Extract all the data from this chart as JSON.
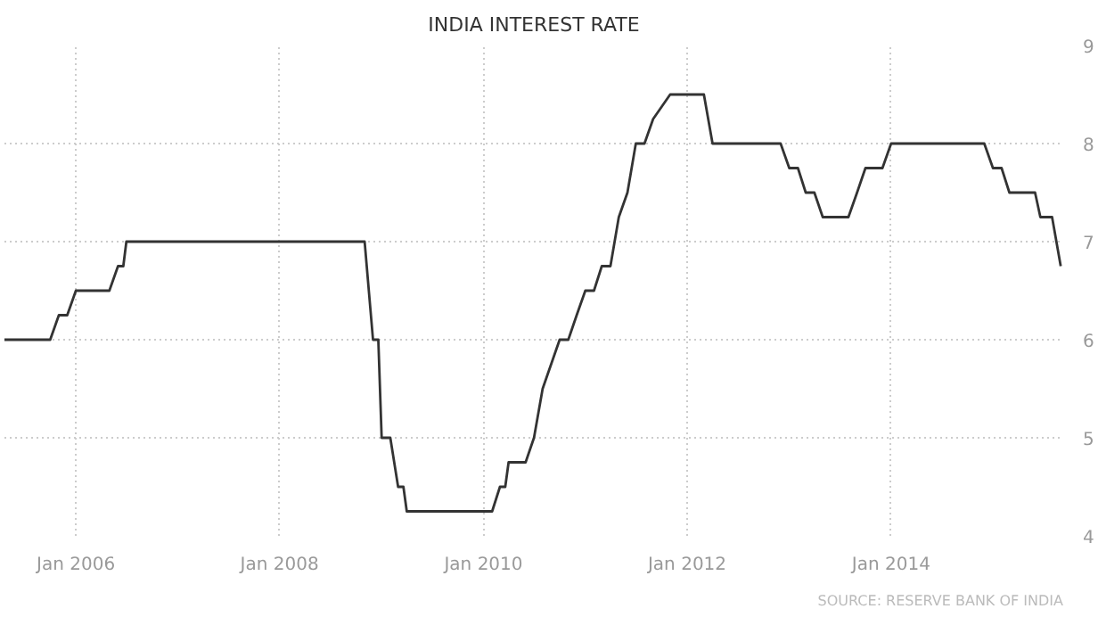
{
  "chart_data": {
    "type": "line",
    "title": "INDIA INTEREST RATE",
    "annotations": [
      "SOURCE: RESERVE BANK OF INDIA"
    ],
    "series": [
      {
        "color": "#333333",
        "x": [
          "2005-04-20",
          "2005-10",
          "2005-11",
          "2005-12",
          "2006-01",
          "2006-05",
          "2006-06",
          "2006-06-20",
          "2006-07",
          "2008-11",
          "2008-12",
          "2008-12-20",
          "2009-01",
          "2009-02",
          "2009-03",
          "2009-03-20",
          "2009-04",
          "2010-02",
          "2010-03",
          "2010-03-20",
          "2010-04",
          "2010-06",
          "2010-07",
          "2010-08",
          "2010-10",
          "2010-11",
          "2010-12",
          "2011-01",
          "2011-02",
          "2011-03",
          "2011-04",
          "2011-05",
          "2011-06",
          "2011-07",
          "2011-08",
          "2011-09",
          "2011-11",
          "2012-03",
          "2012-04",
          "2012-12",
          "2013-01",
          "2013-02",
          "2013-03",
          "2013-04",
          "2013-05",
          "2013-08",
          "2013-09",
          "2013-10",
          "2013-12",
          "2014-01",
          "2014-12",
          "2015-01",
          "2015-02",
          "2015-03",
          "2015-06",
          "2015-06-20",
          "2015-08",
          "2015-09"
        ],
        "values": [
          6.0,
          6.0,
          6.25,
          6.25,
          6.5,
          6.5,
          6.75,
          6.75,
          7.0,
          7.0,
          6.0,
          6.0,
          5.0,
          5.0,
          4.5,
          4.5,
          4.25,
          4.25,
          4.5,
          4.5,
          4.75,
          4.75,
          5.0,
          5.5,
          6.0,
          6.0,
          6.25,
          6.5,
          6.5,
          6.75,
          6.75,
          7.25,
          7.5,
          8.0,
          8.0,
          8.25,
          8.5,
          8.5,
          8.0,
          8.0,
          7.75,
          7.75,
          7.5,
          7.5,
          7.25,
          7.25,
          7.5,
          7.75,
          7.75,
          8.0,
          8.0,
          7.75,
          7.75,
          7.5,
          7.5,
          7.25,
          7.25,
          6.75
        ]
      }
    ],
    "xlim": [
      "2005-04-20",
      "2015-09-10"
    ],
    "xticks": [
      {
        "value": "2006-01-01",
        "label": "Jan 2006"
      },
      {
        "value": "2008-01-01",
        "label": "Jan 2008"
      },
      {
        "value": "2010-01-01",
        "label": "Jan 2010"
      },
      {
        "value": "2012-01-01",
        "label": "Jan 2012"
      },
      {
        "value": "2014-01-01",
        "label": "Jan 2014"
      }
    ],
    "ylim": [
      4,
      9
    ],
    "yticks": [
      4,
      5,
      6,
      7,
      8,
      9
    ],
    "grid": true,
    "marker": "none",
    "line_style": "solid"
  }
}
